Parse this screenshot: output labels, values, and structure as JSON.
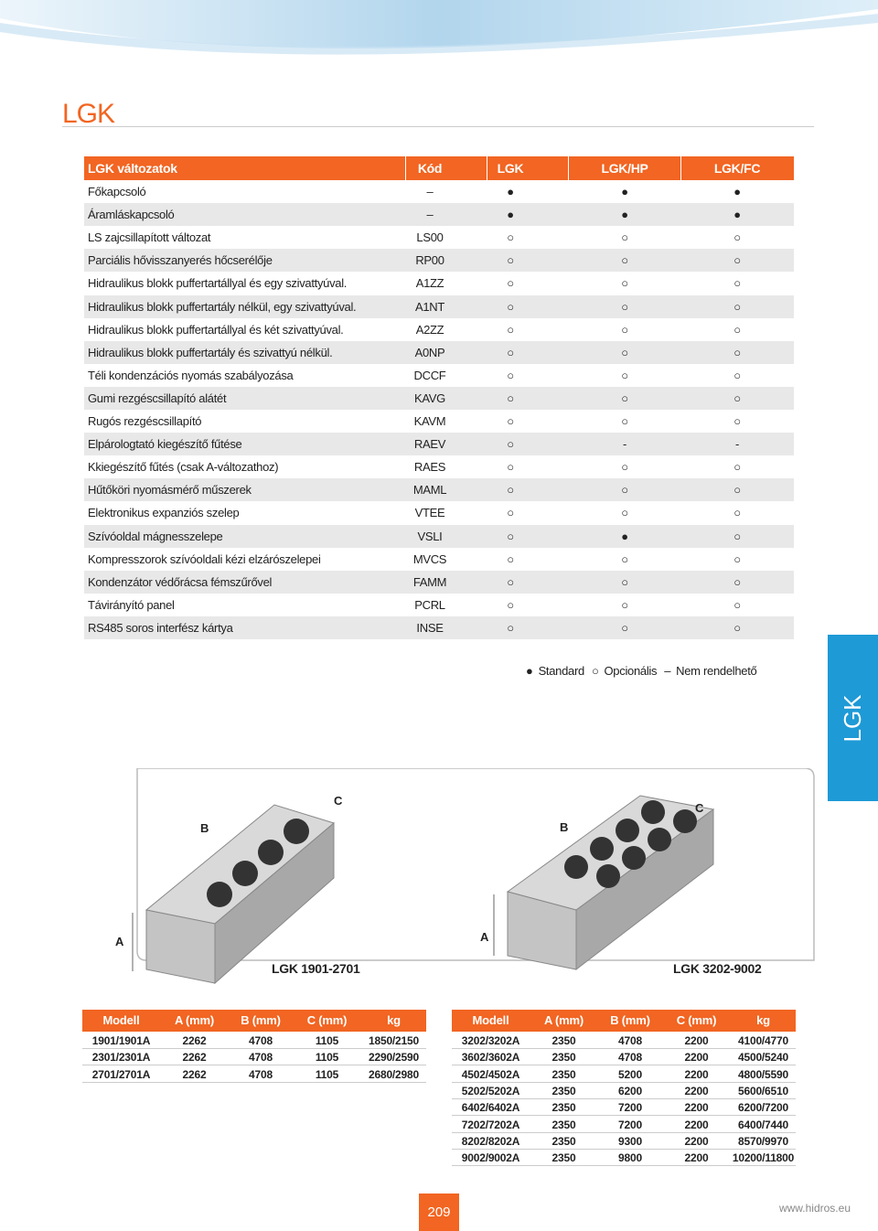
{
  "header": {
    "title": "LGK",
    "side_tab": "LGK"
  },
  "options": {
    "header": [
      "LGK változatok",
      "Kód",
      "LGK",
      "LGK/HP",
      "LGK/FC"
    ],
    "rows": [
      [
        "Főkapcsoló",
        "–",
        "●",
        "●",
        "●"
      ],
      [
        "Áramláskapcsoló",
        "–",
        "●",
        "●",
        "●"
      ],
      [
        "LS zajcsillapított változat",
        "LS00",
        "○",
        "○",
        "○"
      ],
      [
        "Parciális hővisszanyerés hőcserélője",
        "RP00",
        "○",
        "○",
        "○"
      ],
      [
        "Hidraulikus blokk puffertartállyal és egy szivattyúval.",
        "A1ZZ",
        "○",
        "○",
        "○"
      ],
      [
        "Hidraulikus blokk puffertartály nélkül, egy szivattyúval.",
        "A1NT",
        "○",
        "○",
        "○"
      ],
      [
        "Hidraulikus blokk puffertartállyal és két szivattyúval.",
        "A2ZZ",
        "○",
        "○",
        "○"
      ],
      [
        "Hidraulikus blokk puffertartály és szivattyú nélkül.",
        "A0NP",
        "○",
        "○",
        "○"
      ],
      [
        "Téli kondenzációs nyomás szabályozása",
        "DCCF",
        "○",
        "○",
        "○"
      ],
      [
        "Gumi rezgéscsillapító alátét",
        "KAVG",
        "○",
        "○",
        "○"
      ],
      [
        "Rugós rezgéscsillapító",
        "KAVM",
        "○",
        "○",
        "○"
      ],
      [
        "Elpárologtató kiegészítő fűtése",
        "RAEV",
        "○",
        "-",
        "-"
      ],
      [
        "Kkiegészítő fűtés (csak A-változathoz)",
        "RAES",
        "○",
        "○",
        "○"
      ],
      [
        "Hűtőköri nyomásmérő műszerek",
        "MAML",
        "○",
        "○",
        "○"
      ],
      [
        "Elektronikus expanziós szelep",
        "VTEE",
        "○",
        "○",
        "○"
      ],
      [
        "Szívóoldal mágnesszelepe",
        "VSLI",
        "○",
        "●",
        "○"
      ],
      [
        "Kompresszorok szívóoldali kézi elzárószelepei",
        "MVCS",
        "○",
        "○",
        "○"
      ],
      [
        "Kondenzátor védőrácsa fémszűrővel",
        "FAMM",
        "○",
        "○",
        "○"
      ],
      [
        "Távirányító panel",
        "PCRL",
        "○",
        "○",
        "○"
      ],
      [
        "RS485 soros interfész kártya",
        "INSE",
        "○",
        "○",
        "○"
      ]
    ]
  },
  "legend": [
    {
      "symbol": "●",
      "label": "Standard"
    },
    {
      "symbol": "○",
      "label": "Opcionális"
    },
    {
      "symbol": "–",
      "label": "Nem rendelhető"
    }
  ],
  "units": [
    {
      "caption": "LGK 1901-2701",
      "a": "A",
      "b": "B",
      "c": "C"
    },
    {
      "caption": "LGK 3202-9002",
      "a": "A",
      "b": "B",
      "c": "C"
    }
  ],
  "dimensions": [
    {
      "header": [
        "Modell",
        "A (mm)",
        "B (mm)",
        "C (mm)",
        "kg"
      ],
      "rows": [
        [
          "1901/1901A",
          "2262",
          "4708",
          "1105",
          "1850/2150"
        ],
        [
          "2301/2301A",
          "2262",
          "4708",
          "1105",
          "2290/2590"
        ],
        [
          "2701/2701A",
          "2262",
          "4708",
          "1105",
          "2680/2980"
        ]
      ]
    },
    {
      "header": [
        "Modell",
        "A (mm)",
        "B (mm)",
        "C (mm)",
        "kg"
      ],
      "rows": [
        [
          "3202/3202A",
          "2350",
          "4708",
          "2200",
          "4100/4770"
        ],
        [
          "3602/3602A",
          "2350",
          "4708",
          "2200",
          "4500/5240"
        ],
        [
          "4502/4502A",
          "2350",
          "5200",
          "2200",
          "4800/5590"
        ],
        [
          "5202/5202A",
          "2350",
          "6200",
          "2200",
          "5600/6510"
        ],
        [
          "6402/6402A",
          "2350",
          "7200",
          "2200",
          "6200/7200"
        ],
        [
          "7202/7202A",
          "2350",
          "7200",
          "2200",
          "6400/7440"
        ],
        [
          "8202/8202A",
          "2350",
          "9300",
          "2200",
          "8570/9970"
        ],
        [
          "9002/9002A",
          "2350",
          "9800",
          "2200",
          "10200/11800"
        ]
      ]
    }
  ],
  "footer": {
    "page": "209",
    "url": "www.hidros.eu"
  }
}
